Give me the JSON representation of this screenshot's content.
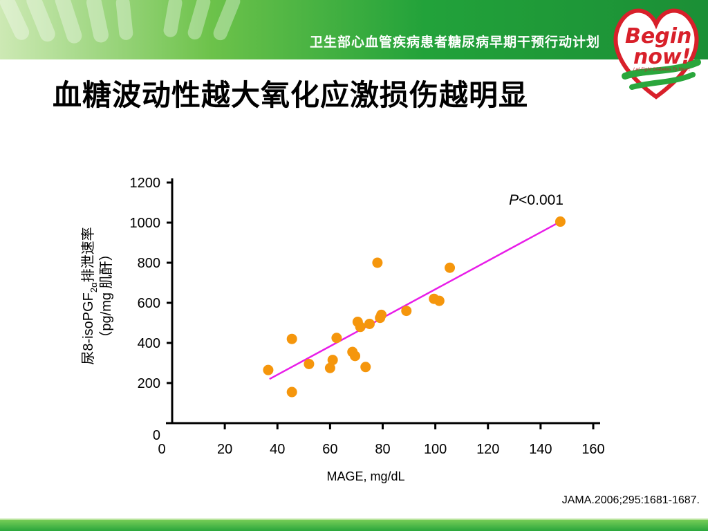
{
  "header": {
    "program_text": "卫生部心血管疾病患者糖尿病早期干预行动计划",
    "logo_text_1": "Begin",
    "logo_text_2": "now!",
    "logo_tagline": "Let Fight Diabetes To Heart"
  },
  "slide": {
    "title": "血糖波动性越大氧化应激损伤越明显",
    "citation": "JAMA.2006;295:1681-1687."
  },
  "colors": {
    "point": "#f5960c",
    "fit_line": "#e81ce8",
    "green_dark": "#1b8f36",
    "green_light": "#7fd15a"
  },
  "chart_data": {
    "type": "scatter",
    "title": "",
    "xlabel": "MAGE, mg/dL",
    "ylabel_line1_pre": "尿8-isoPGF",
    "ylabel_line1_sub": "2α",
    "ylabel_line1_post": "排泄速率",
    "ylabel_line2": "（pg/mg 肌酐）",
    "annotation_p": "P",
    "annotation_rest": "<0.001",
    "xlim": [
      0,
      160
    ],
    "ylim": [
      0,
      1200
    ],
    "x_ticks": [
      "0",
      "20",
      "40",
      "60",
      "80",
      "100",
      "120",
      "140",
      "160"
    ],
    "y_ticks": [
      "0",
      "200",
      "400",
      "600",
      "800",
      "1000",
      "1200"
    ],
    "grid": false,
    "points": [
      {
        "x": 36.5,
        "y": 265
      },
      {
        "x": 45.5,
        "y": 155
      },
      {
        "x": 45.5,
        "y": 420
      },
      {
        "x": 52,
        "y": 295
      },
      {
        "x": 60,
        "y": 275
      },
      {
        "x": 61,
        "y": 315
      },
      {
        "x": 62.5,
        "y": 425
      },
      {
        "x": 68.5,
        "y": 355
      },
      {
        "x": 69.5,
        "y": 335
      },
      {
        "x": 70.5,
        "y": 505
      },
      {
        "x": 71.5,
        "y": 480
      },
      {
        "x": 73.5,
        "y": 280
      },
      {
        "x": 75,
        "y": 495
      },
      {
        "x": 78,
        "y": 800
      },
      {
        "x": 79,
        "y": 525
      },
      {
        "x": 79.5,
        "y": 540
      },
      {
        "x": 89,
        "y": 560
      },
      {
        "x": 99.5,
        "y": 620
      },
      {
        "x": 101.5,
        "y": 610
      },
      {
        "x": 105.5,
        "y": 775
      },
      {
        "x": 147.5,
        "y": 1005
      }
    ],
    "fit_line": [
      {
        "x": 37,
        "y": 220
      },
      {
        "x": 147.5,
        "y": 1005
      }
    ]
  }
}
